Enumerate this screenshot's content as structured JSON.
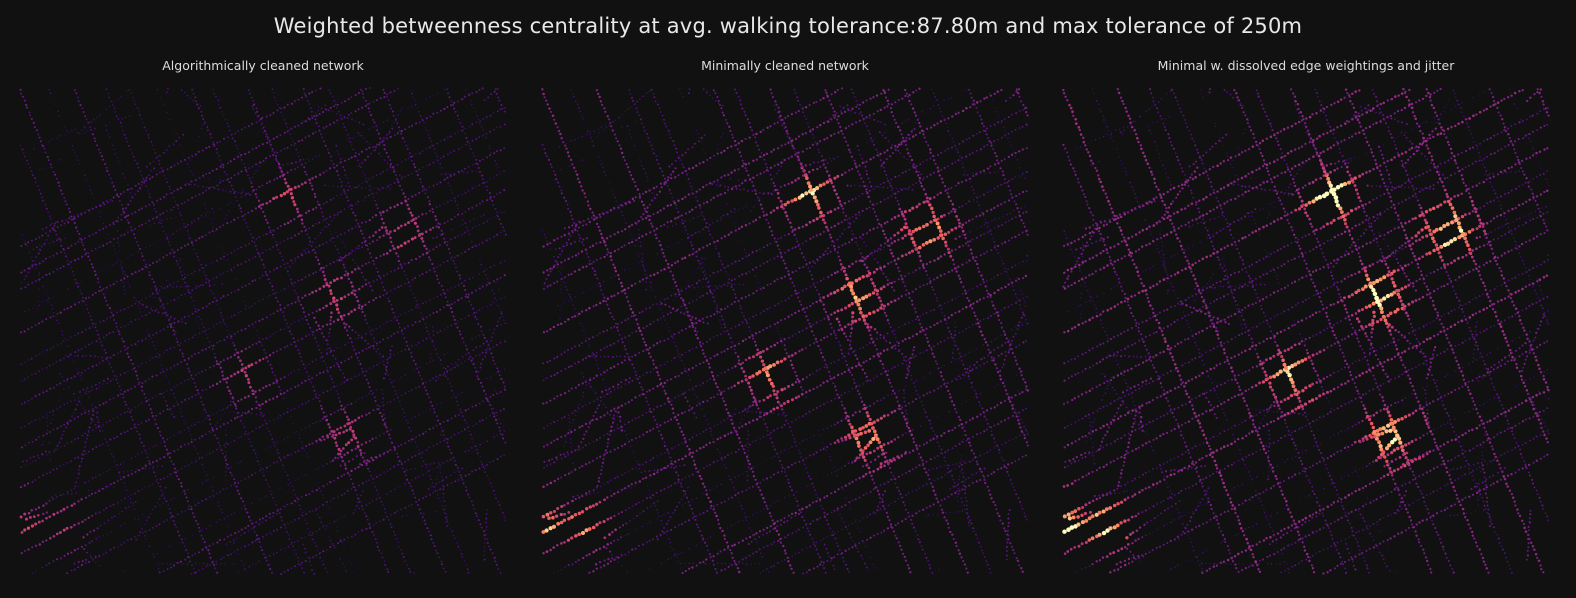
{
  "figure": {
    "title": "Weighted betweenness centrality at avg. walking tolerance:87.80m and max tolerance of 250m",
    "background_color": "#111111",
    "colormap": "magma",
    "panels": [
      {
        "title": "Algorithmically cleaned network",
        "intensity": 0.55,
        "seed": 11
      },
      {
        "title": "Minimally cleaned network",
        "intensity": 0.85,
        "seed": 23
      },
      {
        "title": "Minimal w. dissolved edge weightings and jitter",
        "intensity": 1.0,
        "seed": 37
      }
    ]
  }
}
